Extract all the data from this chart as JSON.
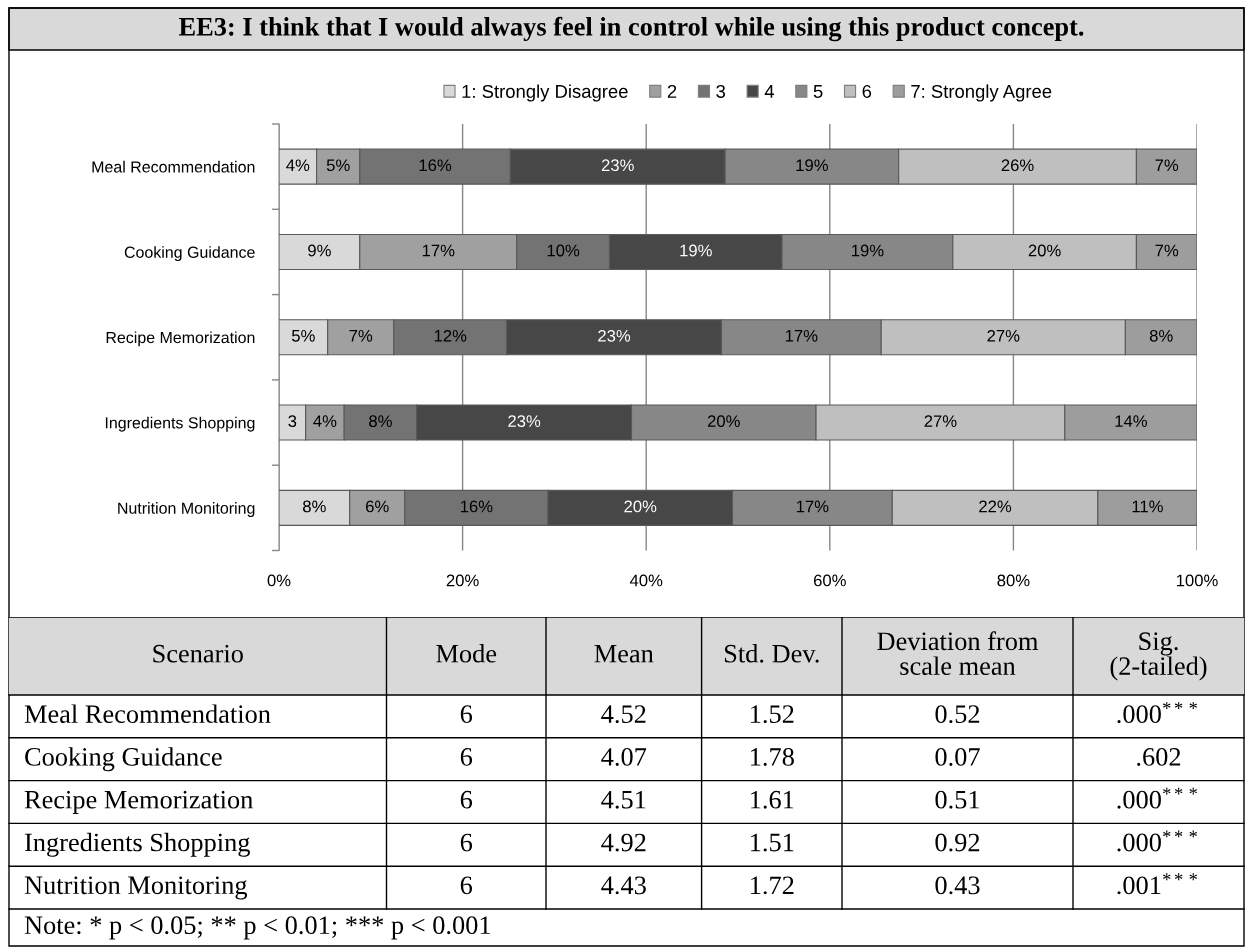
{
  "chart_data": [
    {
      "type": "bar",
      "title": "EE3: I think that I would always feel in control while using this product concept.",
      "orientation": "horizontal",
      "stacked": true,
      "categories": [
        "Meal Recommendation",
        "Cooking Guidance",
        "Recipe Memorization",
        "Ingredients Shopping",
        "Nutrition Monitoring"
      ],
      "series": [
        {
          "name": "1: Strongly Disagree",
          "color": "#d9d9d9",
          "values": [
            4.1,
            8.8,
            5.3,
            2.9,
            7.7
          ],
          "value_labels": [
            "4%",
            "9%",
            "5%",
            "3",
            "8%"
          ]
        },
        {
          "name": "2",
          "color": "#a0a0a0",
          "values": [
            4.7,
            17.1,
            7.2,
            4.2,
            6.0
          ],
          "value_labels": [
            "5%",
            "17%",
            "7%",
            "4%",
            "6%"
          ]
        },
        {
          "name": "3",
          "color": "#737373",
          "values": [
            16.4,
            10.1,
            12.3,
            7.9,
            15.6
          ],
          "value_labels": [
            "16%",
            "10%",
            "12%",
            "8%",
            "16%"
          ]
        },
        {
          "name": "4",
          "color": "#474747",
          "values": [
            23.4,
            18.8,
            23.4,
            23.4,
            20.1
          ],
          "value_labels": [
            "23%",
            "19%",
            "23%",
            "23%",
            "20%"
          ]
        },
        {
          "name": "5",
          "color": "#878787",
          "values": [
            18.9,
            18.6,
            17.4,
            20.1,
            17.4
          ],
          "value_labels": [
            "19%",
            "19%",
            "17%",
            "20%",
            "17%"
          ]
        },
        {
          "name": "6",
          "color": "#bfbfbf",
          "values": [
            25.9,
            20.0,
            26.6,
            27.1,
            22.4
          ],
          "value_labels": [
            "26%",
            "20%",
            "27%",
            "27%",
            "22%"
          ]
        },
        {
          "name": "7: Strongly Agree",
          "color": "#9d9d9d",
          "values": [
            6.6,
            6.6,
            7.8,
            14.4,
            10.8
          ],
          "value_labels": [
            "7%",
            "7%",
            "8%",
            "14%",
            "11%"
          ]
        }
      ],
      "xlim": [
        0,
        100
      ],
      "xticks": [
        {
          "value": 0,
          "label": "0%"
        },
        {
          "value": 20,
          "label": "20%"
        },
        {
          "value": 40,
          "label": "40%"
        },
        {
          "value": 60,
          "label": "60%"
        },
        {
          "value": 80,
          "label": "80%"
        },
        {
          "value": 100,
          "label": "100%"
        }
      ],
      "grid": "x",
      "legend": "top"
    },
    {
      "type": "other",
      "ylabel": "Scenario",
      "categories": [
        "Meal Recommendation",
        "Cooking Guidance",
        "Recipe Memorization",
        "Ingredients Shopping",
        "Nutrition Monitoring"
      ],
      "series": [
        {
          "name": "Mode",
          "values": [
            6,
            6,
            6,
            6,
            6
          ],
          "value_labels": [
            "6",
            "6",
            "6",
            "6",
            "6"
          ]
        },
        {
          "name": "Mean",
          "values": [
            4.52,
            4.07,
            4.51,
            4.92,
            4.43
          ],
          "value_labels": [
            "4.52",
            "4.07",
            "4.51",
            "4.92",
            "4.43"
          ]
        },
        {
          "name": "Std. Dev.",
          "values": [
            1.52,
            1.78,
            1.61,
            1.51,
            1.72
          ],
          "value_labels": [
            "1.52",
            "1.78",
            "1.61",
            "1.51",
            "1.72"
          ]
        },
        {
          "name": "Deviation from\nscale mean",
          "values": [
            0.52,
            0.07,
            0.51,
            0.92,
            0.43
          ],
          "value_labels": [
            "0.52",
            "0.07",
            "0.51",
            "0.92",
            "0.43"
          ]
        },
        {
          "name": "Sig.\n(2-tailed)",
          "values": [
            0.0,
            0.602,
            0.0,
            0.0,
            0.001
          ],
          "value_labels": [
            ".000$^{***}$",
            ".602",
            ".000$^{***}$",
            ".000$^{***}$",
            ".001$^{***}$"
          ]
        }
      ],
      "annotations": [
        "Note: * p < 0.05; ** p < 0.01; *** p < 0.001"
      ]
    }
  ]
}
